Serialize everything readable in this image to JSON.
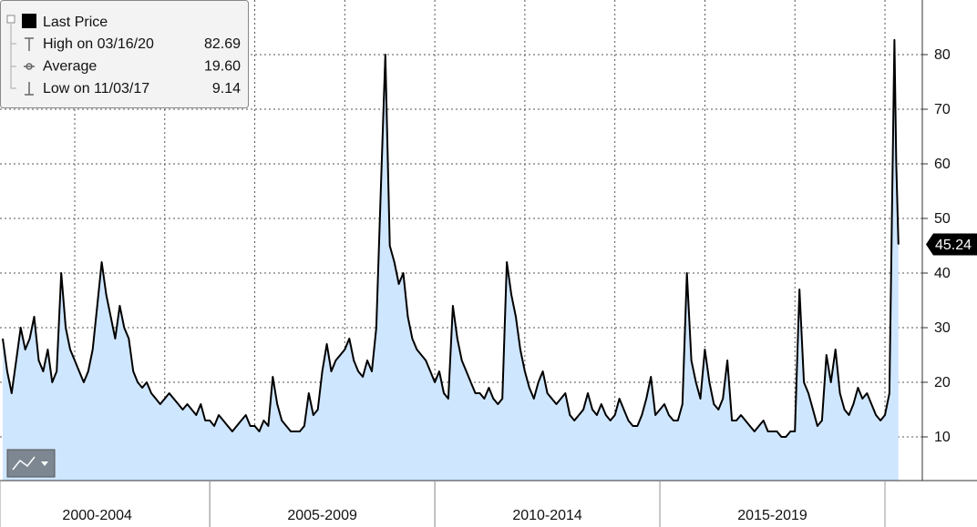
{
  "chart_data": {
    "type": "line",
    "series": [
      {
        "name": "Last Price",
        "color": "#000000",
        "fill": "#cfe6ff",
        "values": [
          28,
          22,
          18,
          24,
          30,
          26,
          28,
          32,
          24,
          22,
          26,
          20,
          22,
          40,
          30,
          26,
          24,
          22,
          20,
          22,
          26,
          34,
          42,
          36,
          32,
          28,
          34,
          30,
          28,
          22,
          20,
          19,
          20,
          18,
          17,
          16,
          17,
          18,
          17,
          16,
          15,
          16,
          15,
          14,
          16,
          13,
          13,
          12,
          14,
          13,
          12,
          11,
          12,
          13,
          14,
          12,
          12,
          11,
          13,
          12,
          21,
          16,
          13,
          12,
          11,
          11,
          11,
          12,
          18,
          14,
          15,
          22,
          27,
          22,
          24,
          25,
          26,
          28,
          24,
          22,
          21,
          24,
          22,
          30,
          55,
          80,
          45,
          42,
          38,
          40,
          32,
          28,
          26,
          25,
          24,
          22,
          20,
          22,
          18,
          17,
          34,
          28,
          24,
          22,
          20,
          18,
          18,
          17,
          19,
          17,
          16,
          17,
          42,
          36,
          32,
          26,
          22,
          19,
          17,
          20,
          22,
          18,
          17,
          16,
          17,
          18,
          14,
          13,
          14,
          15,
          18,
          15,
          14,
          16,
          14,
          13,
          14,
          17,
          15,
          13,
          12,
          12,
          14,
          17,
          21,
          14,
          15,
          16,
          14,
          13,
          13,
          16,
          40,
          24,
          20,
          17,
          26,
          20,
          16,
          15,
          17,
          24,
          13,
          13,
          14,
          13,
          12,
          11,
          12,
          13,
          11,
          11,
          11,
          10,
          10,
          11,
          11,
          37,
          20,
          18,
          15,
          12,
          13,
          25,
          20,
          26,
          18,
          15,
          14,
          16,
          19,
          17,
          18,
          16,
          14,
          13,
          14,
          18,
          82.69,
          60,
          45.24
        ]
      }
    ],
    "x": [
      2000.4,
      2000.5,
      2000.6,
      2000.7,
      2000.8,
      2000.9,
      2001.0,
      2001.1,
      2001.2,
      2001.3,
      2001.4,
      2001.5,
      2001.6,
      2001.7,
      2001.8,
      2001.9,
      2002.0,
      2002.1,
      2002.2,
      2002.3,
      2002.4,
      2002.5,
      2002.6,
      2002.7,
      2002.8,
      2002.9,
      2003.0,
      2003.1,
      2003.2,
      2003.3,
      2003.4,
      2003.5,
      2003.6,
      2003.7,
      2003.8,
      2003.9,
      2004.0,
      2004.1,
      2004.2,
      2004.3,
      2004.4,
      2004.5,
      2004.6,
      2004.7,
      2004.8,
      2004.9,
      2005.0,
      2005.1,
      2005.2,
      2005.3,
      2005.4,
      2005.5,
      2005.6,
      2005.7,
      2005.8,
      2005.9,
      2006.0,
      2006.1,
      2006.2,
      2006.3,
      2006.4,
      2006.5,
      2006.6,
      2006.7,
      2006.8,
      2006.9,
      2007.0,
      2007.1,
      2007.2,
      2007.3,
      2007.4,
      2007.5,
      2007.6,
      2007.7,
      2007.8,
      2007.9,
      2008.0,
      2008.1,
      2008.2,
      2008.3,
      2008.4,
      2008.5,
      2008.6,
      2008.7,
      2008.8,
      2008.9,
      2009.0,
      2009.1,
      2009.2,
      2009.3,
      2009.4,
      2009.5,
      2009.6,
      2009.7,
      2009.8,
      2009.9,
      2010.0,
      2010.1,
      2010.2,
      2010.3,
      2010.4,
      2010.5,
      2010.6,
      2010.7,
      2010.8,
      2010.9,
      2011.0,
      2011.1,
      2011.2,
      2011.3,
      2011.4,
      2011.5,
      2011.6,
      2011.7,
      2011.8,
      2011.9,
      2012.0,
      2012.1,
      2012.2,
      2012.3,
      2012.4,
      2012.5,
      2012.6,
      2012.7,
      2012.8,
      2012.9,
      2013.0,
      2013.1,
      2013.2,
      2013.3,
      2013.4,
      2013.5,
      2013.6,
      2013.7,
      2013.8,
      2013.9,
      2014.0,
      2014.1,
      2014.2,
      2014.3,
      2014.4,
      2014.5,
      2014.6,
      2014.7,
      2014.8,
      2014.9,
      2015.0,
      2015.1,
      2015.2,
      2015.3,
      2015.4,
      2015.5,
      2015.6,
      2015.7,
      2015.8,
      2015.9,
      2016.0,
      2016.1,
      2016.2,
      2016.3,
      2016.4,
      2016.5,
      2016.6,
      2016.7,
      2016.8,
      2016.9,
      2017.0,
      2017.1,
      2017.2,
      2017.3,
      2017.4,
      2017.5,
      2017.6,
      2017.7,
      2017.8,
      2017.9,
      2018.0,
      2018.1,
      2018.2,
      2018.3,
      2018.4,
      2018.5,
      2018.6,
      2018.7,
      2018.8,
      2018.9,
      2019.0,
      2019.1,
      2019.2,
      2019.3,
      2019.4,
      2019.5,
      2019.6,
      2019.7,
      2019.8,
      2019.9,
      2020.0,
      2020.1,
      2020.21,
      2020.25,
      2020.3
    ],
    "xlim": [
      2000.34,
      2020.83
    ],
    "xticks": [
      2002,
      2004,
      2006,
      2008,
      2010,
      2012,
      2014,
      2016,
      2018,
      2020
    ],
    "periods": [
      {
        "label": "2000-2004",
        "start": 2000,
        "end": 2005
      },
      {
        "label": "2005-2009",
        "start": 2005,
        "end": 2010
      },
      {
        "label": "2010-2014",
        "start": 2010,
        "end": 2015
      },
      {
        "label": "2015-2019",
        "start": 2015,
        "end": 2020
      }
    ],
    "ylim": [
      2,
      90
    ],
    "yticks": [
      10,
      20,
      30,
      40,
      50,
      60,
      70,
      80
    ],
    "grid": true,
    "legend": {
      "stats": [
        {
          "label": "High on 03/16/20",
          "value": 82.69,
          "value_label": "82.69"
        },
        {
          "label": "Average",
          "value": 19.6,
          "value_label": "19.60"
        },
        {
          "label": "Low on 11/03/17",
          "value": 9.14,
          "value_label": "9.14"
        }
      ]
    }
  }
}
